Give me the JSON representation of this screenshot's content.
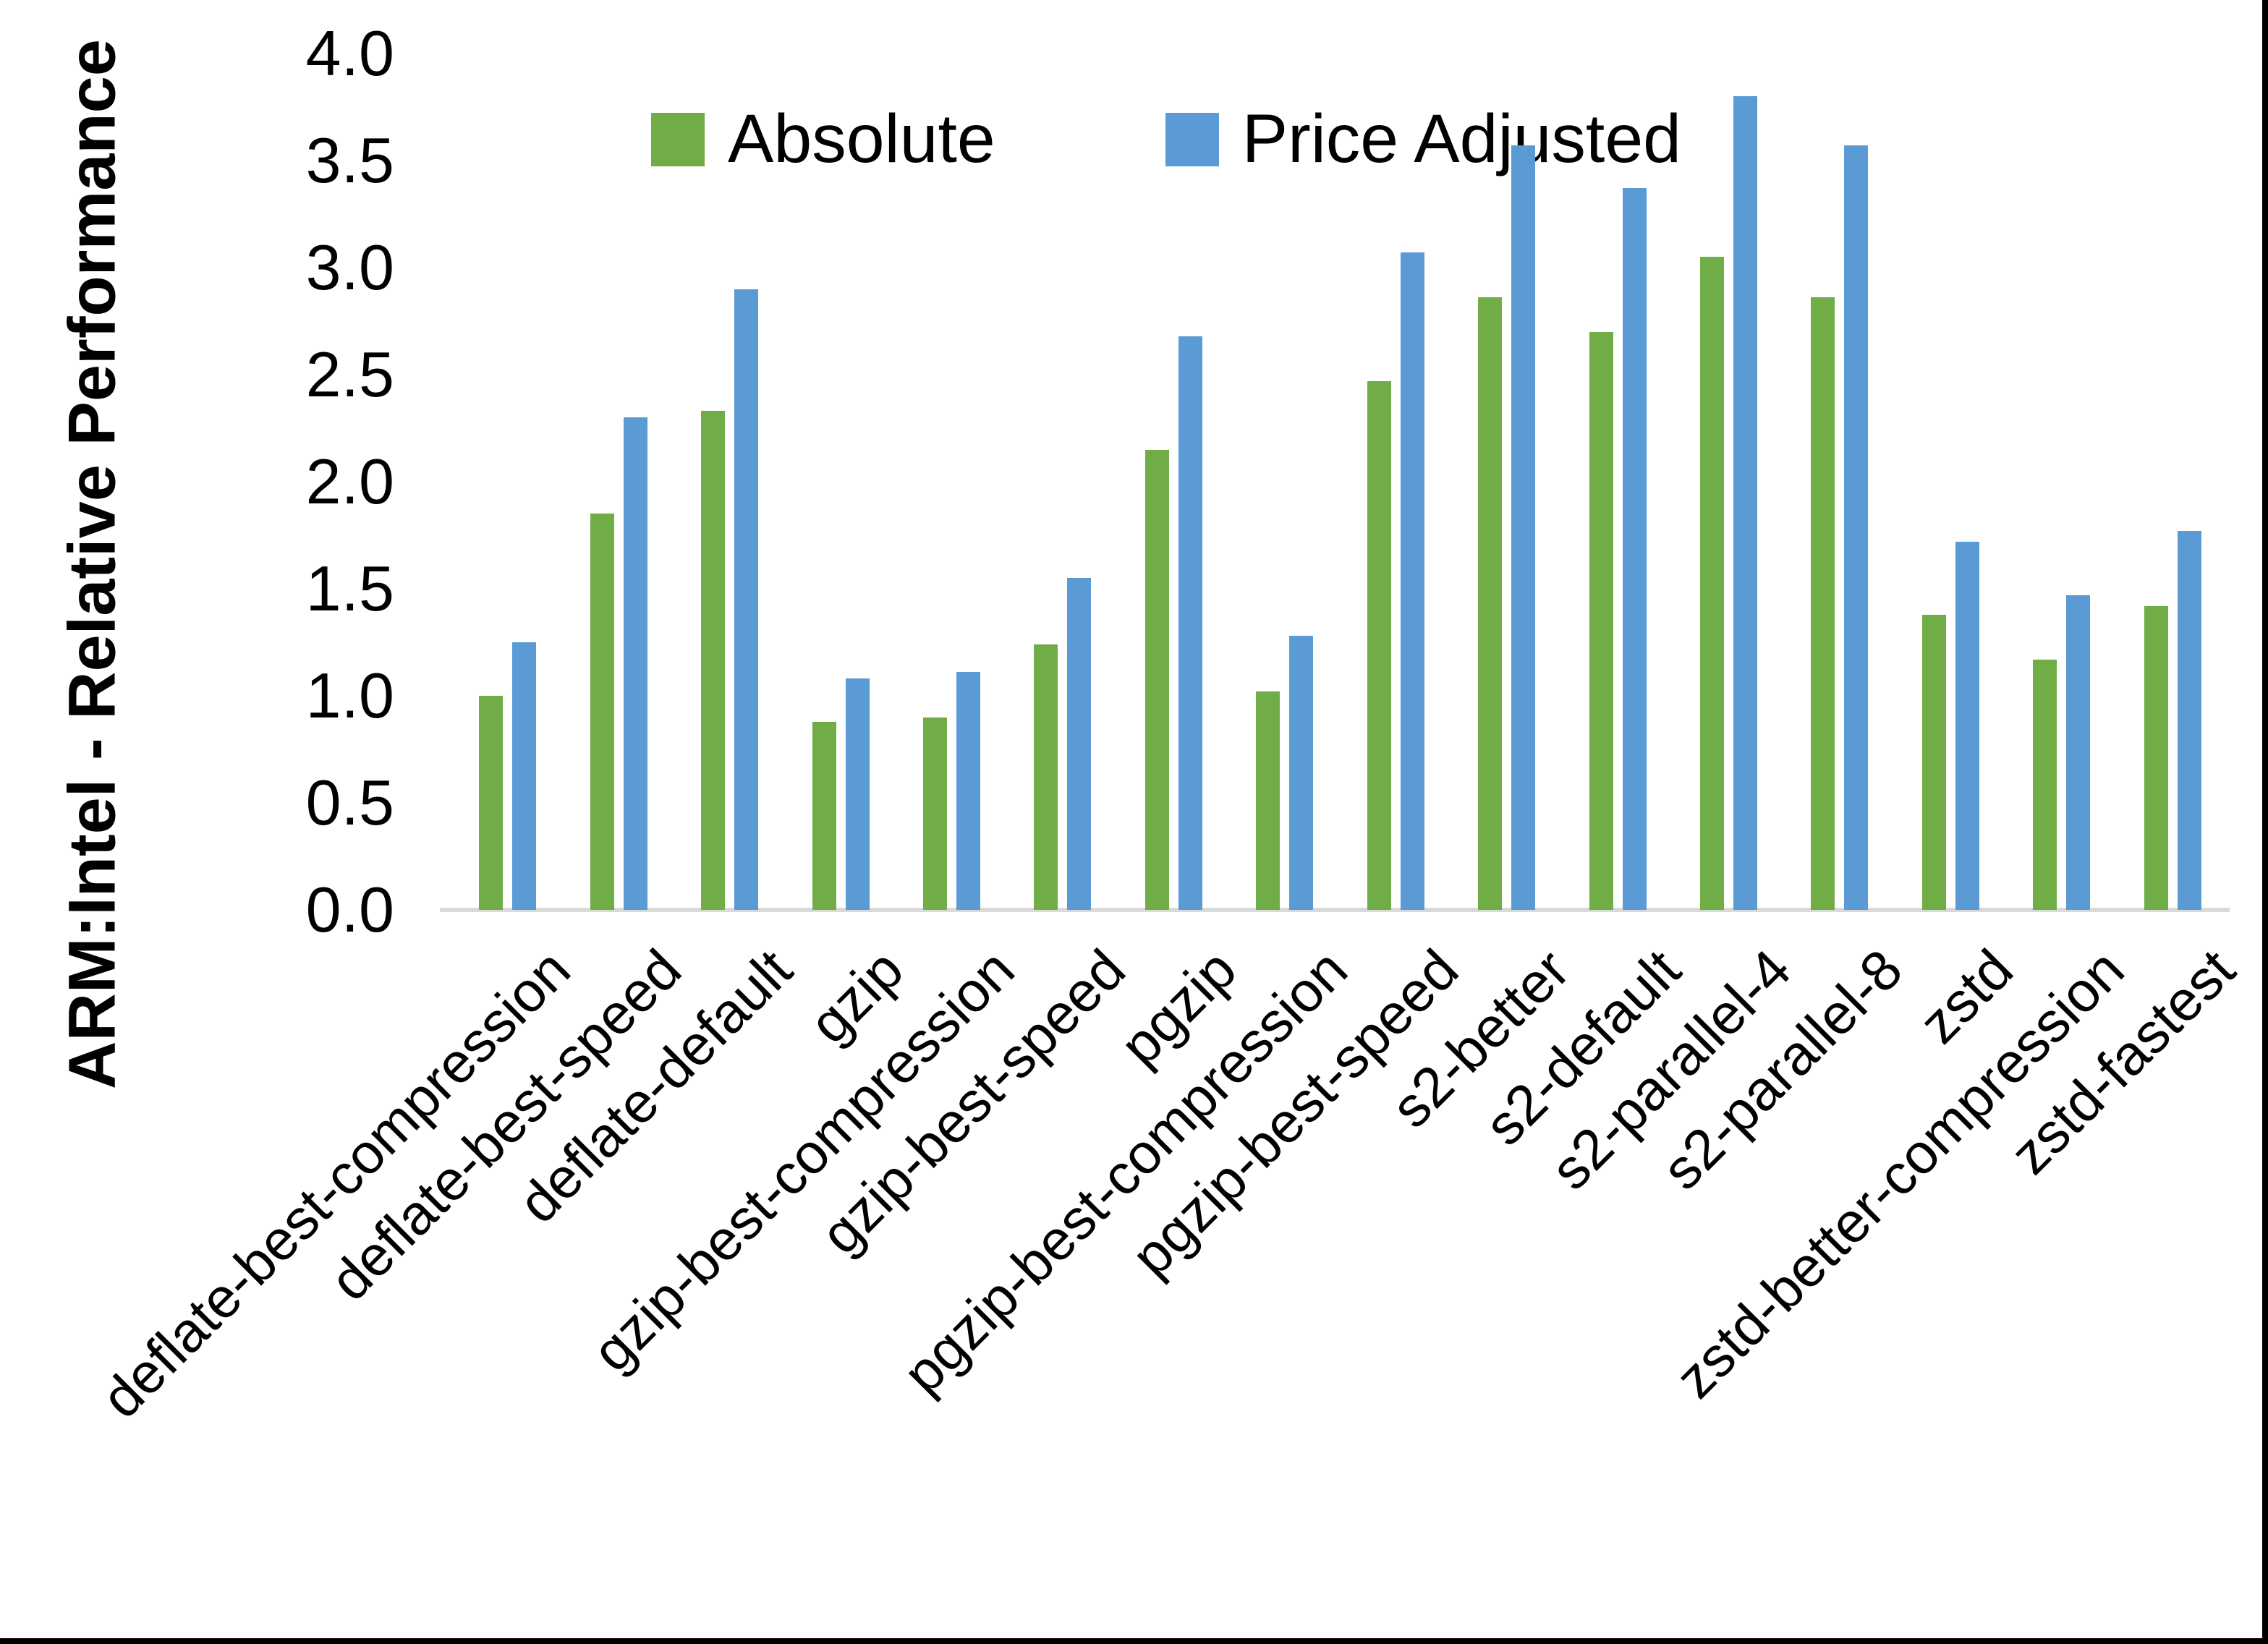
{
  "chart_data": {
    "type": "bar",
    "title": "",
    "ylabel": "ARM:Intel - Relative Performance",
    "xlabel": "",
    "ylim": [
      0.0,
      4.0
    ],
    "ytick_step": 0.5,
    "yticks": [
      "0.0",
      "0.5",
      "1.0",
      "1.5",
      "2.0",
      "2.5",
      "3.0",
      "3.5",
      "4.0"
    ],
    "grid": "off",
    "legend_position": "top-center",
    "categories": [
      "deflate-best-compression",
      "deflate-best-speed",
      "deflate-default",
      "gzip",
      "gzip-best-compression",
      "gzip-best-speed",
      "pgzip",
      "pgzip-best-compression",
      "pgzip-best-speed",
      "s2-better",
      "s2-default",
      "s2-parallel-4",
      "s2-parallel-8",
      "zstd",
      "zstd-better-compression",
      "zstd-fastest"
    ],
    "series": [
      {
        "name": "Absolute",
        "color": "#70AD47",
        "values": [
          1.0,
          1.85,
          2.33,
          0.88,
          0.9,
          1.24,
          2.15,
          1.02,
          2.47,
          2.86,
          2.7,
          3.05,
          2.86,
          1.38,
          1.17,
          1.42
        ]
      },
      {
        "name": "Price Adjusted",
        "color": "#5B9BD5",
        "values": [
          1.25,
          2.3,
          2.9,
          1.08,
          1.11,
          1.55,
          2.68,
          1.28,
          3.07,
          3.57,
          3.37,
          3.8,
          3.57,
          1.72,
          1.47,
          1.77
        ]
      }
    ],
    "axis_line_color": "#D9D9D9",
    "frame_edge_color": "#000000"
  }
}
